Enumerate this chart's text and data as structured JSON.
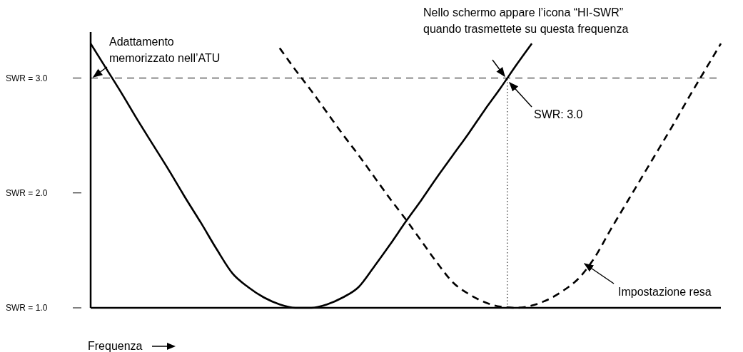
{
  "chart_data": {
    "type": "line",
    "xlabel": "Frequenza",
    "categories": [
      null,
      null,
      null,
      null,
      null,
      null,
      null,
      null,
      null,
      null,
      null,
      null,
      null,
      null,
      null,
      null,
      null,
      null,
      null,
      null,
      null,
      null,
      null,
      null,
      null,
      null,
      null,
      null,
      null,
      null,
      null,
      null,
      null,
      null,
      null,
      null,
      null,
      null,
      null,
      null,
      null
    ],
    "series": [
      {
        "color": "#000000",
        "line_style": "solid",
        "values": [
          3.3,
          3.08,
          2.86,
          2.63,
          2.41,
          2.19,
          1.96,
          1.74,
          1.51,
          1.3,
          1.18,
          1.09,
          1.03,
          1.0,
          1.0,
          1.03,
          1.09,
          1.18,
          1.36,
          1.55,
          1.75,
          1.94,
          2.14,
          2.33,
          2.52,
          2.72,
          2.91,
          3.11,
          3.3,
          null,
          null,
          null,
          null,
          null,
          null,
          null,
          null,
          null,
          null,
          null,
          null
        ]
      },
      {
        "color": "#000000",
        "line_style": "dashed",
        "values": [
          null,
          null,
          null,
          null,
          null,
          null,
          null,
          null,
          null,
          null,
          null,
          null,
          3.26,
          3.07,
          2.89,
          2.7,
          2.51,
          2.33,
          2.14,
          1.95,
          1.77,
          1.58,
          1.39,
          1.22,
          1.12,
          1.05,
          1.01,
          1.0,
          1.02,
          1.07,
          1.15,
          1.26,
          1.44,
          1.68,
          1.91,
          2.14,
          2.37,
          2.6,
          2.84,
          3.07,
          3.3
        ]
      }
    ],
    "ylim": [
      1,
      3.4
    ],
    "yticks": [
      {
        "value": 1,
        "label": "SWR = 1.0"
      },
      {
        "value": 2,
        "label": "SWR = 2.0"
      },
      {
        "value": 3,
        "label": "SWR = 3.0"
      }
    ],
    "ref_lines": [
      {
        "axis": "y",
        "value": 3,
        "line_style": "dashed",
        "color": "#000000"
      }
    ],
    "annotations": [
      "Adattamento\nmemorizzato nell’ATU",
      "Nello schermo appare l’icona “HI-SWR”\nquando trasmettete su questa frequenza",
      "SWR: 3.0",
      "Impostazione resa"
    ],
    "marker": "none"
  }
}
